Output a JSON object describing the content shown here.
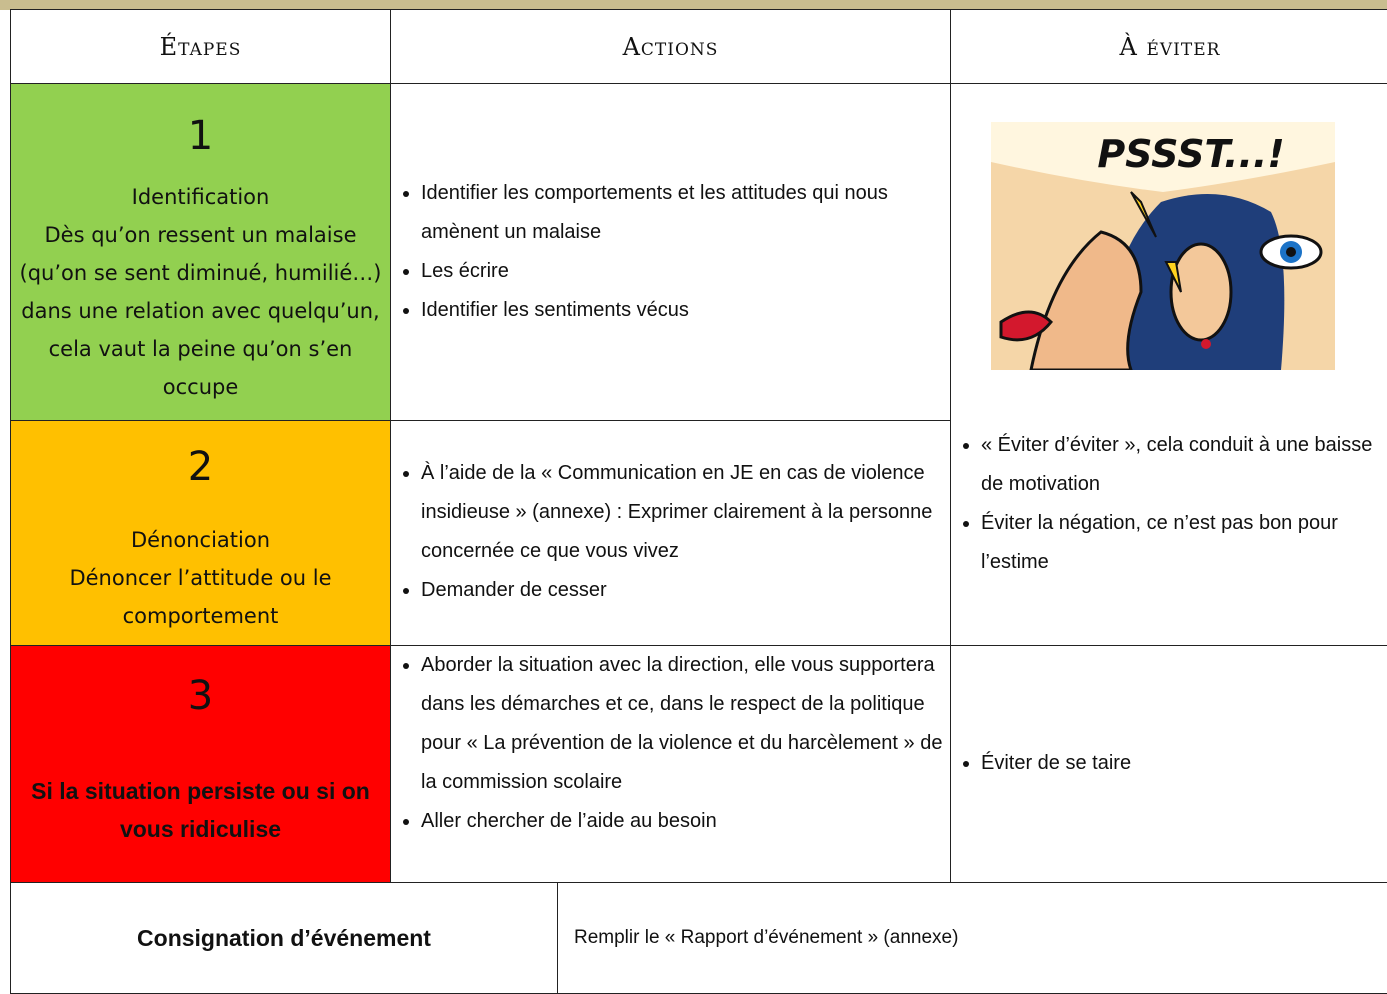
{
  "header": {
    "columns": [
      "Étapes",
      "Actions",
      "À éviter"
    ]
  },
  "rows": [
    {
      "number": "1",
      "title": "Identification",
      "description": "Dès qu’on ressent un malaise (qu’on se sent diminué, humilié…) dans une relation avec quelqu’un, cela vaut la peine qu’on s’en occupe",
      "actions": [
        "Identifier les comportements et les attitudes qui nous amènent un malaise",
        "Les écrire",
        "Identifier les sentiments vécus"
      ]
    },
    {
      "number": "2",
      "title": "Dénonciation",
      "description": "Dénoncer l’attitude ou le comportement",
      "actions": [
        "À l’aide de la « Communication en JE en cas de violence insidieuse » (annexe) : Exprimer clairement à la personne concernée ce que vous vivez",
        "Demander de cesser"
      ]
    },
    {
      "number": "3",
      "description": "Si la situation persiste ou si on vous ridiculise",
      "actions": [
        "Aborder la situation avec la direction, elle vous supportera dans les démarches et ce, dans le respect de la politique pour « La prévention de la violence et du harcèlement » de la commission scolaire",
        "Aller chercher de l’aide au besoin"
      ]
    }
  ],
  "avoid": {
    "image_text": "PSSST...!",
    "top": [
      "« Éviter d’éviter », cela conduit à une baisse de motivation",
      "Éviter la négation, ce n’est pas bon pour l’estime"
    ],
    "bottom": [
      "Éviter de se taire"
    ]
  },
  "footer": {
    "label": "Consignation d’événement",
    "text": "Remplir le « Rapport d’événement » (annexe)"
  }
}
